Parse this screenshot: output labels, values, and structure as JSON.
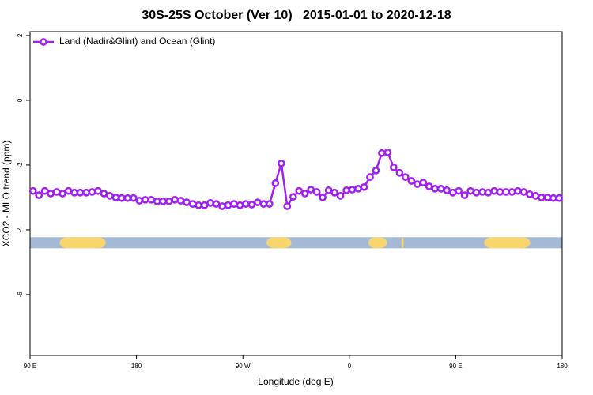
{
  "chart_data": {
    "type": "line",
    "title": "30S-25S October (Ver 10)   2015-01-01 to 2020-12-18",
    "x_label": "Longitude (deg E)",
    "y_label": "XCO2 - MLO trend (ppm)",
    "xlim": [
      90,
      540
    ],
    "xticks": [
      {
        "value": 90,
        "label": "90 E"
      },
      {
        "value": 180,
        "label": "180"
      },
      {
        "value": 270,
        "label": "90 W"
      },
      {
        "value": 360,
        "label": "0"
      },
      {
        "value": 450,
        "label": "90 E"
      },
      {
        "value": 540,
        "label": "180"
      }
    ],
    "ylim": [
      -7.88,
      2.12
    ],
    "yticks": [
      2,
      0,
      -2,
      -4,
      -6
    ],
    "legend": "top-left",
    "x": [
      92.5,
      97.5,
      102.5,
      107.5,
      112.5,
      117.5,
      122.5,
      127.5,
      132.5,
      137.5,
      142.5,
      147.5,
      152.5,
      157.5,
      162.5,
      167.5,
      172.5,
      177.5,
      182.5,
      187.5,
      192.5,
      197.5,
      202.5,
      207.5,
      212.5,
      217.5,
      222.5,
      227.5,
      232.5,
      237.5,
      242.5,
      247.5,
      252.5,
      257.5,
      262.5,
      267.5,
      272.5,
      277.5,
      282.5,
      287.5,
      292.5,
      297.5,
      302.5,
      307.5,
      312.5,
      317.5,
      322.5,
      327.5,
      332.5,
      337.5,
      342.5,
      347.5,
      352.5,
      357.5,
      362.5,
      367.5,
      372.5,
      377.5,
      382.5,
      387.5,
      392.5,
      397.5,
      402.5,
      407.5,
      412.5,
      417.5,
      422.5,
      427.5,
      432.5,
      437.5,
      442.5,
      447.5,
      452.5,
      457.5,
      462.5,
      467.5,
      472.5,
      477.5,
      482.5,
      487.5,
      492.5,
      497.5,
      502.5,
      507.5,
      512.5,
      517.5,
      522.5,
      527.5,
      532.5,
      537.5
    ],
    "series": [
      {
        "name": "Land (Nadir&Glint) and Ocean (Glint)",
        "color": "#a020f0",
        "values": [
          -2.8,
          -2.93,
          -2.8,
          -2.88,
          -2.83,
          -2.88,
          -2.8,
          -2.85,
          -2.85,
          -2.85,
          -2.83,
          -2.8,
          -2.88,
          -2.95,
          -3.0,
          -3.02,
          -3.02,
          -3.02,
          -3.1,
          -3.07,
          -3.07,
          -3.12,
          -3.12,
          -3.12,
          -3.07,
          -3.1,
          -3.15,
          -3.2,
          -3.24,
          -3.24,
          -3.17,
          -3.2,
          -3.27,
          -3.24,
          -3.2,
          -3.24,
          -3.2,
          -3.22,
          -3.15,
          -3.2,
          -3.2,
          -2.56,
          -1.95,
          -3.27,
          -2.98,
          -2.8,
          -2.88,
          -2.76,
          -2.83,
          -3.0,
          -2.78,
          -2.85,
          -2.95,
          -2.78,
          -2.76,
          -2.73,
          -2.68,
          -2.37,
          -2.17,
          -1.63,
          -1.61,
          -2.07,
          -2.24,
          -2.37,
          -2.49,
          -2.59,
          -2.54,
          -2.66,
          -2.73,
          -2.73,
          -2.78,
          -2.85,
          -2.8,
          -2.93,
          -2.8,
          -2.85,
          -2.83,
          -2.85,
          -2.8,
          -2.83,
          -2.83,
          -2.83,
          -2.8,
          -2.83,
          -2.9,
          -2.95,
          -3.0,
          -3.0,
          -3.02,
          -3.02
        ]
      }
    ],
    "land_band": {
      "y": -4.4,
      "ocean_color": "#a3b9d6",
      "land_color": "#f9d56e",
      "land_spans": [
        [
          115,
          154
        ],
        [
          290,
          311
        ],
        [
          376,
          392
        ],
        [
          404,
          406
        ],
        [
          474,
          513
        ]
      ]
    }
  }
}
